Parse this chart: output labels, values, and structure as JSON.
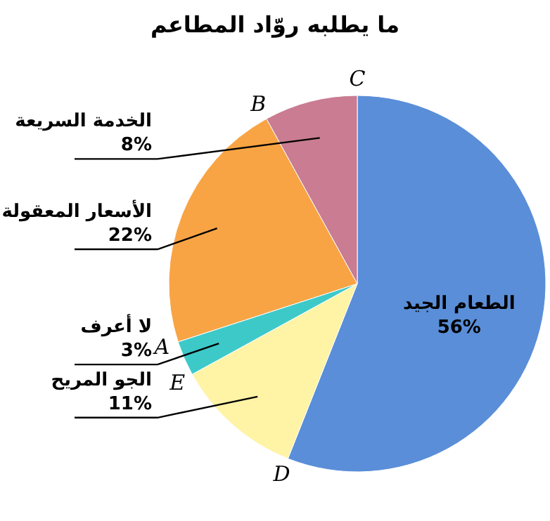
{
  "chart_data": {
    "type": "pie",
    "title": "ما يطلبه روّاد المطاعم",
    "categories": [
      "الطعام الجيد",
      "الجو المريح",
      "لا أعرف",
      "الأسعار المعقولة",
      "الخدمة السريعة"
    ],
    "values": [
      56,
      11,
      3,
      22,
      8
    ],
    "colors": [
      "#5a8ed8",
      "#fff3a6",
      "#3ec9c9",
      "#f8a444",
      "#c97c92"
    ],
    "value_labels": [
      "56%",
      "11%",
      "3%",
      "22%",
      "8%"
    ],
    "annotations": [
      "C",
      "D",
      "E",
      "A",
      "B"
    ]
  }
}
